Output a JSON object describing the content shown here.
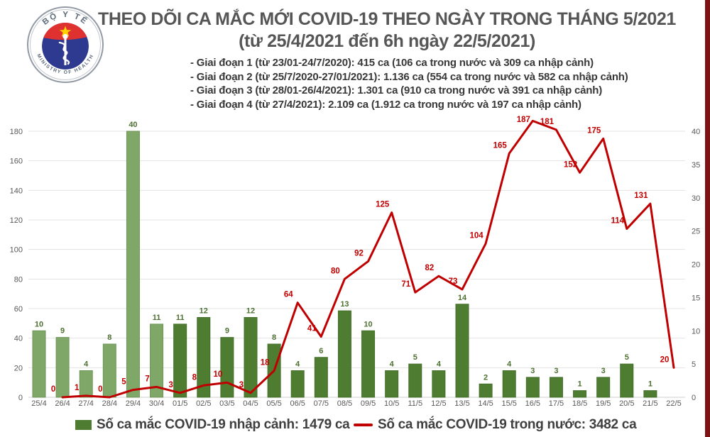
{
  "header": {
    "title_line1": "THEO DÕI CA MẮC MỚI COVID-19 THEO NGÀY TRONG THÁNG 5/2021",
    "title_line2": "(từ 25/4/2021 đến 6h ngày 22/5/2021)",
    "bullets": [
      "- Giai đoạn 1 (từ 23/01-24/7/2020): 415 ca (106 ca trong nước và 309 ca nhập cảnh)",
      "- Giai đoạn 2 (từ 25/7/2020-27/01/2021): 1.136 ca (554 ca trong nước và 582 ca nhập cảnh)",
      "- Giai đoạn 3 (từ 28/01-26/4/2021): 1.301 ca (910 ca trong nước và 391 ca nhập cảnh)",
      "- Giai đoạn 4 (từ 27/4/2021): 2.109 ca (1.912 ca trong nước và 197 ca nhập cảnh)"
    ],
    "logo": {
      "top_text": "BỘ Y TẾ",
      "bottom_text": "MINISTRY OF HEALTH",
      "colors": {
        "ring": "#939aa5",
        "text": "#5d6b7a",
        "blue": "#2d3a8f",
        "red": "#e03131",
        "star": "#ffd200"
      }
    }
  },
  "chart_data": {
    "type": "bar",
    "combo": "bar+line",
    "categories": [
      "25/4",
      "26/4",
      "27/4",
      "28/4",
      "29/4",
      "30/4",
      "01/5",
      "02/5",
      "03/5",
      "04/5",
      "05/5",
      "06/5",
      "07/5",
      "08/5",
      "09/5",
      "10/5",
      "11/5",
      "12/5",
      "13/5",
      "14/5",
      "15/5",
      "16/5",
      "17/5",
      "18/5",
      "19/5",
      "20/5",
      "21/5",
      "22/5"
    ],
    "series": [
      {
        "name": "Số ca mắc COVID-19 nhập cảnh",
        "type": "bar",
        "axis": "right",
        "values": [
          10,
          9,
          4,
          8,
          40,
          11,
          11,
          12,
          9,
          12,
          8,
          4,
          6,
          13,
          10,
          4,
          5,
          4,
          14,
          2,
          4,
          3,
          3,
          1,
          3,
          5,
          1,
          null
        ]
      },
      {
        "name": "Số ca mắc COVID-19 trong nước",
        "type": "line",
        "axis": "left",
        "values": [
          null,
          0,
          1,
          0,
          5,
          7,
          3,
          8,
          10,
          3,
          18,
          64,
          41,
          80,
          92,
          125,
          71,
          82,
          73,
          104,
          165,
          187,
          181,
          152,
          175,
          114,
          131,
          20
        ]
      }
    ],
    "left_axis": {
      "min": 0,
      "max": 180,
      "step": 20
    },
    "right_axis": {
      "min": 0,
      "max": 40,
      "step": 5
    },
    "grid": "horizontal",
    "legend_position": "bottom",
    "colors": {
      "bar_april": "#7ea768",
      "bar_april_stroke": "#6d9657",
      "bar_may": "#4e7c31",
      "bar_may_stroke": "#44702a",
      "bar_label": "#4c7030",
      "line": "#c00000",
      "line_label": "#c00000",
      "axis_label": "#595959",
      "grid_line": "#e3e3e3",
      "zero_line": "#cfcfcf"
    },
    "april_bar_count": 6
  },
  "legend": {
    "items": [
      {
        "label": "Số ca mắc COVID-19 nhập cảnh: 1479 ca",
        "swatch": "bar-square",
        "color": "#4e7c31"
      },
      {
        "label": "Số ca mắc COVID-19 trong nước: 3482 ca",
        "swatch": "line-dash",
        "color": "#c00000"
      }
    ]
  }
}
